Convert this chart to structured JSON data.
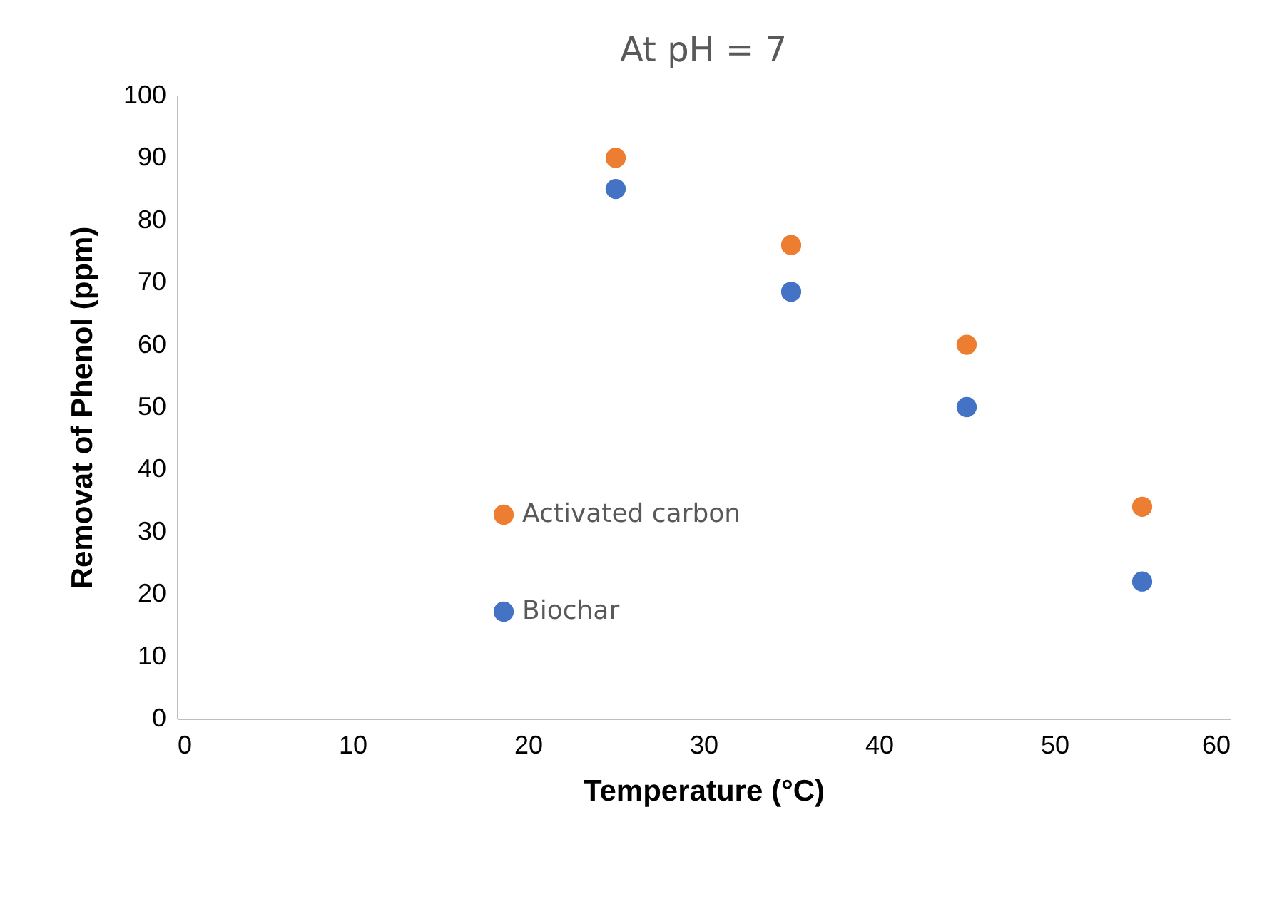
{
  "chart_data": {
    "type": "scatter",
    "title": "At pH = 7",
    "xlabel": "Temperature (°C)",
    "ylabel": "Removat of Phenol (ppm)",
    "x": [
      25,
      35,
      45,
      55
    ],
    "series": [
      {
        "name": "Activated carbon",
        "color": "#ed7d31",
        "values": [
          90,
          76,
          60,
          34
        ]
      },
      {
        "name": "Biochar",
        "color": "#4472c4",
        "values": [
          85,
          68.5,
          50,
          22
        ]
      }
    ],
    "xlim": [
      0,
      60
    ],
    "xticks": [
      0,
      10,
      20,
      30,
      40,
      50,
      60
    ],
    "ylim": [
      0,
      100
    ],
    "yticks": [
      0,
      10,
      20,
      30,
      40,
      50,
      60,
      70,
      80,
      90,
      100
    ],
    "grid": false,
    "legend": "bottom left",
    "marker": "circle"
  }
}
